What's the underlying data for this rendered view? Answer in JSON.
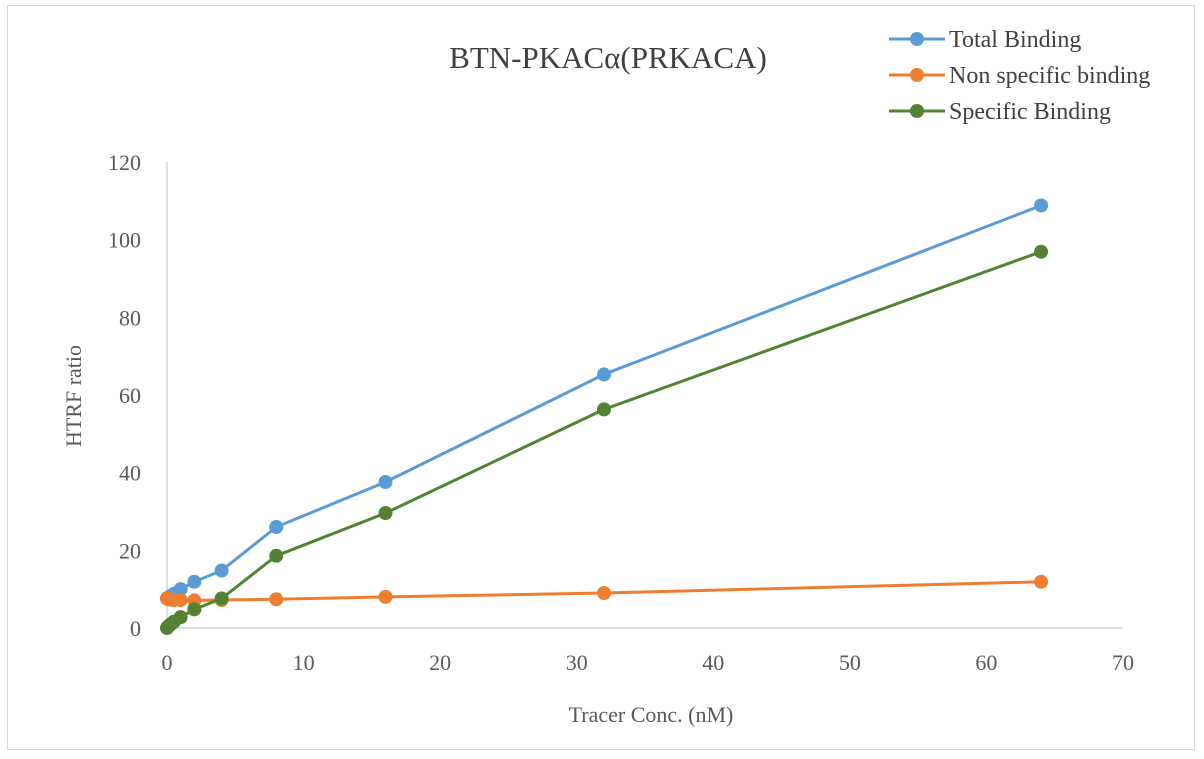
{
  "chart_data": {
    "type": "line",
    "title": "BTN-PKACα(PRKACA)",
    "xlabel": "Tracer Conc. (nM)",
    "ylabel": "HTRF ratio",
    "xlim": [
      0,
      70
    ],
    "ylim": [
      0,
      120
    ],
    "xticks": [
      0,
      10,
      20,
      30,
      40,
      50,
      60,
      70
    ],
    "yticks": [
      0,
      20,
      40,
      60,
      80,
      100,
      120
    ],
    "grid": false,
    "legend": "top-right",
    "x": [
      0,
      0.0625,
      0.125,
      0.25,
      0.5,
      1,
      2,
      4,
      8,
      16,
      32,
      64
    ],
    "series": [
      {
        "name": "Total Binding",
        "color": "#5b9bd5",
        "values": [
          7.6,
          7.8,
          7.9,
          8.2,
          8.8,
          10.0,
          11.9,
          14.8,
          26.0,
          37.6,
          65.3,
          108.8
        ]
      },
      {
        "name": "Non specific binding",
        "color": "#ed7d31",
        "values": [
          7.6,
          7.5,
          7.4,
          7.3,
          7.2,
          7.2,
          7.1,
          7.2,
          7.4,
          8.0,
          9.0,
          11.9
        ]
      },
      {
        "name": "Specific Binding",
        "color": "#548235",
        "values": [
          0.0,
          0.3,
          0.5,
          0.9,
          1.6,
          2.8,
          4.8,
          7.6,
          18.6,
          29.6,
          56.3,
          96.9
        ]
      }
    ]
  }
}
